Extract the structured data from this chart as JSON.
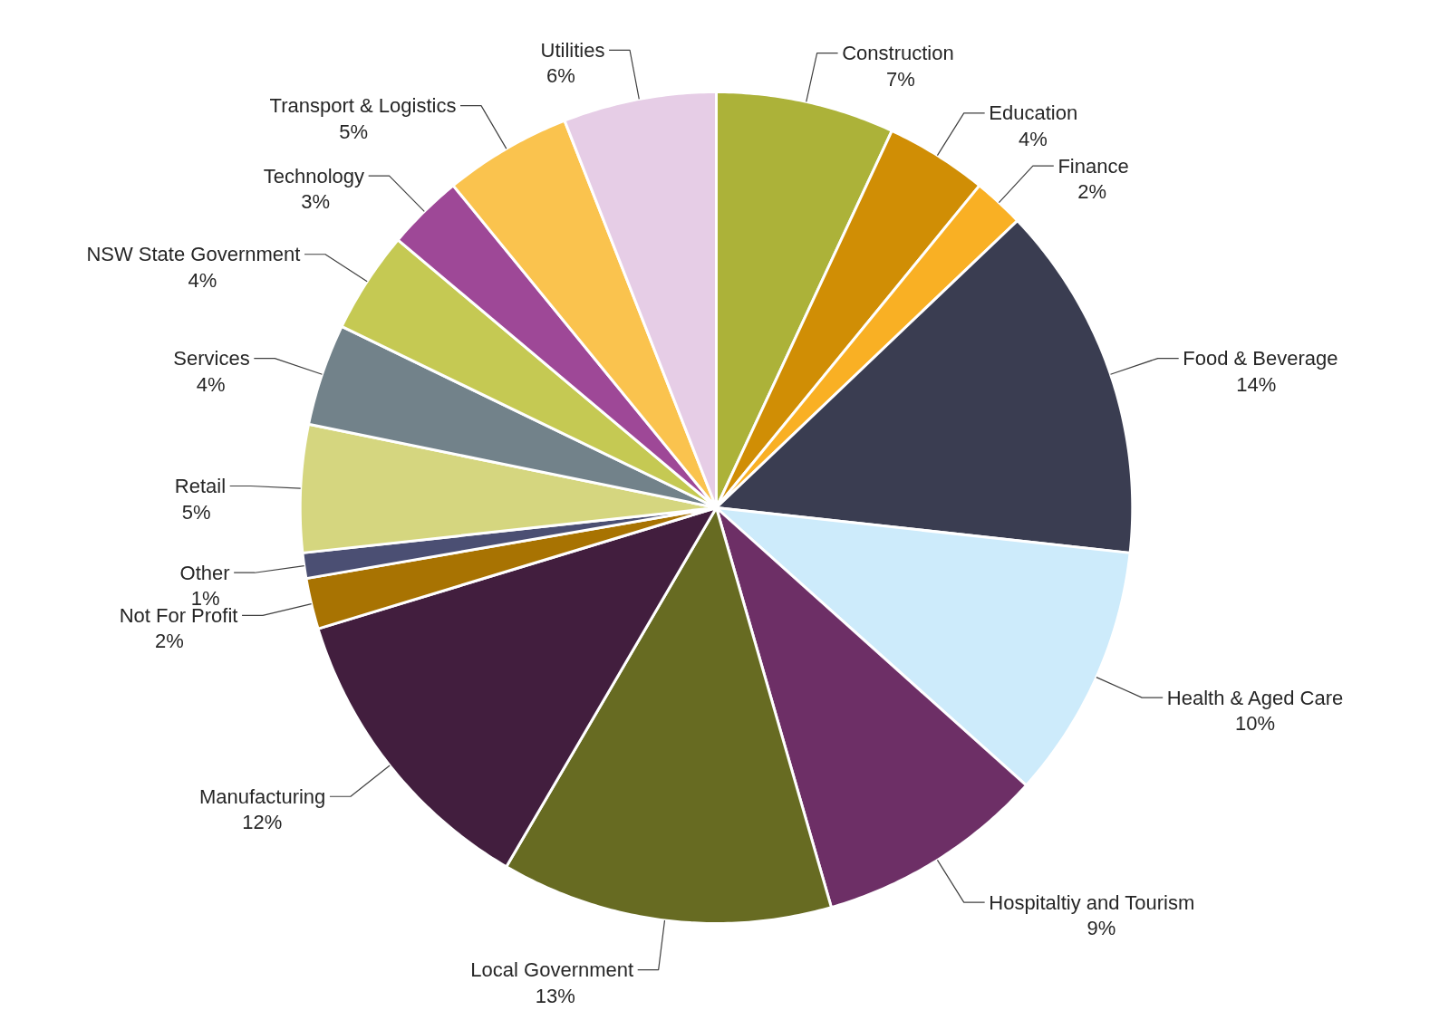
{
  "chart_data": {
    "type": "pie",
    "categories": [
      "Construction",
      "Education",
      "Finance",
      "Food & Beverage",
      "Health & Aged Care",
      "Hospitaltiy and Tourism",
      "Local Government",
      "Manufacturing",
      "Not For Profit",
      "Other",
      "Retail",
      "Services",
      "NSW State Government",
      "Technology",
      "Transport & Logistics",
      "Utilities"
    ],
    "values": [
      7,
      4,
      2,
      14,
      10,
      9,
      13,
      12,
      2,
      1,
      5,
      4,
      4,
      3,
      5,
      6
    ],
    "value_labels": [
      "7%",
      "4%",
      "2%",
      "14%",
      "10%",
      "9%",
      "13%",
      "12%",
      "2%",
      "1%",
      "5%",
      "4%",
      "4%",
      "3%",
      "5%",
      "6%"
    ],
    "colors": [
      "#acb239",
      "#d08e05",
      "#f9b024",
      "#3a3d51",
      "#cdebfb",
      "#6d2f66",
      "#676b22",
      "#421e3e",
      "#a87302",
      "#4b4f73",
      "#d5d67f",
      "#72828a",
      "#c5c953",
      "#9e4897",
      "#fac34e",
      "#e6cde6"
    ]
  }
}
